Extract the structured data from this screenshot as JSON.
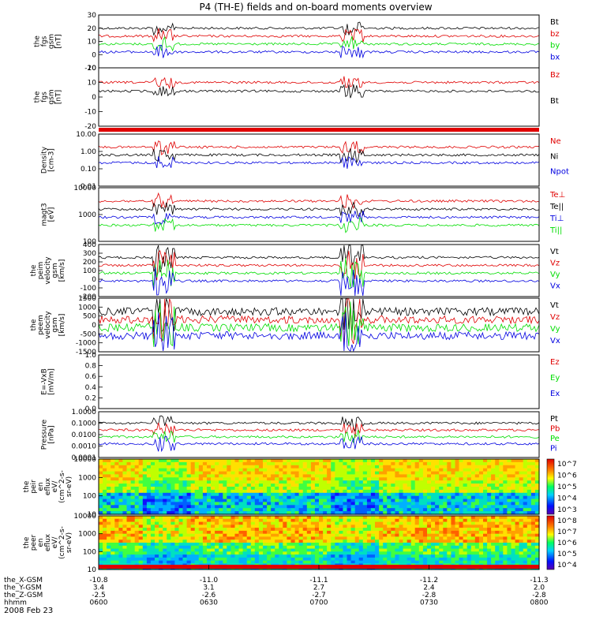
{
  "colors": {
    "black": "#000000",
    "red": "#e00000",
    "green": "#00dd00",
    "blue": "#0000e0",
    "axis": "#000000"
  },
  "chart_data": {
    "type": "line",
    "title": "P4 (TH-E) fields and on-board moments overview",
    "date_label": "2008 Feb 23",
    "time_axis": {
      "rows": [
        {
          "name": "the_X-GSM",
          "values": [
            "-10.8",
            "-11.0",
            "-11.1",
            "-11.2",
            "-11.3"
          ]
        },
        {
          "name": "the_Y-GSM",
          "values": [
            "3.4",
            "3.1",
            "2.7",
            "2.4",
            "2.0"
          ]
        },
        {
          "name": "the_Z-GSM",
          "values": [
            "-2.5",
            "-2.6",
            "-2.7",
            "-2.8",
            "-2.8"
          ]
        },
        {
          "name": "hhmm",
          "values": [
            "0600",
            "0630",
            "0700",
            "0730",
            "0800"
          ]
        }
      ]
    },
    "panels": [
      {
        "id": "fgs_gsm",
        "ylabel": [
          "the",
          "fgs",
          "gsm",
          "[nT]"
        ],
        "ylim": [
          -10,
          30
        ],
        "ticks": [
          "30",
          "20",
          "10",
          "0",
          "-10"
        ],
        "series": [
          {
            "name": "Bt",
            "color": "black"
          },
          {
            "name": "bz",
            "color": "red"
          },
          {
            "name": "by",
            "color": "green"
          },
          {
            "name": "bx",
            "color": "blue"
          }
        ]
      },
      {
        "id": "fgs_gsm_dup",
        "ylabel": [
          "the",
          "fgs",
          "gsm",
          "[nT]"
        ],
        "ylim": [
          -20,
          20
        ],
        "ticks": [
          "20",
          "10",
          "0",
          "-10",
          "-20"
        ],
        "series": [
          {
            "name": "Bz",
            "color": "red"
          },
          {
            "name": "Bt",
            "color": "black"
          }
        ]
      },
      {
        "id": "density",
        "ylabel": [
          "Density",
          "[cm-3]"
        ],
        "ylim": [
          0.01,
          10
        ],
        "log": true,
        "ticks": [
          "10.00",
          "1.00",
          "0.10",
          "0.01"
        ],
        "series": [
          {
            "name": "Ne",
            "color": "red"
          },
          {
            "name": "Ni",
            "color": "black"
          },
          {
            "name": "Npot",
            "color": "blue"
          }
        ]
      },
      {
        "id": "temperature",
        "ylabel": [
          "magt3",
          "[eV]"
        ],
        "ylim": [
          100,
          10000
        ],
        "log": true,
        "ticks": [
          "10000",
          "1000",
          "100"
        ],
        "series": [
          {
            "name": "Te⊥",
            "color": "red"
          },
          {
            "name": "Te||",
            "color": "black"
          },
          {
            "name": "Ti⊥",
            "color": "blue"
          },
          {
            "name": "Ti||",
            "color": "green"
          }
        ]
      },
      {
        "id": "peim_velocity",
        "ylabel": [
          "the",
          "peim",
          "velocity",
          "gsm",
          "[km/s]"
        ],
        "ylim": [
          -200,
          400
        ],
        "ticks": [
          "400",
          "300",
          "200",
          "100",
          "0",
          "-100",
          "-200"
        ],
        "series": [
          {
            "name": "Vt",
            "color": "black"
          },
          {
            "name": "Vz",
            "color": "red"
          },
          {
            "name": "Vy",
            "color": "green"
          },
          {
            "name": "Vx",
            "color": "blue"
          }
        ]
      },
      {
        "id": "peem_velocity",
        "ylabel": [
          "the",
          "peem",
          "velocity",
          "gsm",
          "[km/s]"
        ],
        "ylim": [
          -1500,
          1500
        ],
        "ticks": [
          "1500",
          "1000",
          "500",
          "0",
          "-500",
          "-1000",
          "-1500"
        ],
        "series": [
          {
            "name": "Vt",
            "color": "black"
          },
          {
            "name": "Vz",
            "color": "red"
          },
          {
            "name": "Vy",
            "color": "green"
          },
          {
            "name": "Vx",
            "color": "blue"
          }
        ]
      },
      {
        "id": "efield",
        "ylabel": [
          "E=-VxB",
          "[mV/m]"
        ],
        "ylim": [
          0,
          1
        ],
        "ticks": [
          "1.0",
          "0.8",
          "0.6",
          "0.4",
          "0.2",
          "0.0"
        ],
        "series": [
          {
            "name": "Ez",
            "color": "red"
          },
          {
            "name": "Ey",
            "color": "green"
          },
          {
            "name": "Ex",
            "color": "blue"
          }
        ]
      },
      {
        "id": "pressure",
        "ylabel": [
          "Pressure",
          "[nPa]"
        ],
        "ylim": [
          0.0001,
          1
        ],
        "log": true,
        "ticks": [
          "1.0000",
          "0.1000",
          "0.0100",
          "0.0010",
          "0.0001"
        ],
        "series": [
          {
            "name": "Pt",
            "color": "black"
          },
          {
            "name": "Pb",
            "color": "red"
          },
          {
            "name": "Pe",
            "color": "green"
          },
          {
            "name": "Pi",
            "color": "blue"
          }
        ]
      },
      {
        "id": "peir_eflux",
        "ylabel": [
          "the",
          "peir",
          "en",
          "eflux",
          "eV/",
          "(cm^2-s-",
          "sr-eV)"
        ],
        "ylim": [
          10,
          20000
        ],
        "log": true,
        "type": "heatmap",
        "ticks": [
          "10000",
          "1000",
          "100",
          "10"
        ],
        "colorbar_ticks": [
          "10^7",
          "10^6",
          "10^5",
          "10^4",
          "10^3"
        ]
      },
      {
        "id": "peer_eflux",
        "ylabel": [
          "the",
          "peer",
          "en",
          "eflux",
          "eV/",
          "(cm^2-s-",
          "sr-eV)"
        ],
        "ylim": [
          10,
          20000
        ],
        "log": true,
        "type": "heatmap",
        "ticks": [
          "10000",
          "1000",
          "100",
          "10"
        ],
        "colorbar_ticks": [
          "10^8",
          "10^7",
          "10^6",
          "10^5",
          "10^4"
        ]
      }
    ]
  }
}
